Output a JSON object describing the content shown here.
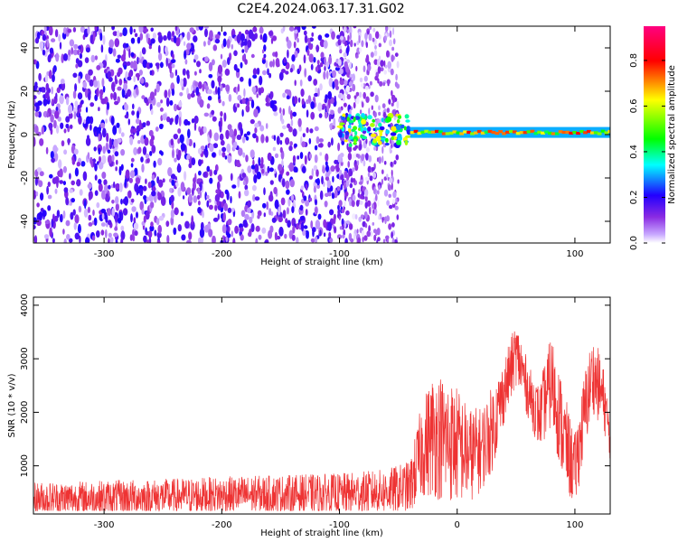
{
  "title": "C2E4.2024.063.17.31.G02",
  "colors": {
    "snr_line": "#ee3333",
    "colorbar_stops": [
      "#ffffff",
      "#c8a8ff",
      "#8a2be2",
      "#2200ff",
      "#00ffff",
      "#00ff00",
      "#ffff00",
      "#ff0000",
      "#ff0080"
    ]
  },
  "chart_data": [
    {
      "type": "heatmap",
      "xlabel": "Height of straight line (km)",
      "ylabel": "Frequency (Hz)",
      "xlim": [
        -360,
        130
      ],
      "ylim": [
        -50,
        50
      ],
      "xticks": [
        -300,
        -200,
        -100,
        0,
        100
      ],
      "xtick_labels": [
        "-300",
        "-200",
        "-100",
        "0",
        "100"
      ],
      "yticks": [
        -40,
        -20,
        0,
        20,
        40
      ],
      "ytick_labels": [
        "-40",
        "-20",
        "0",
        "20",
        "40"
      ],
      "colorbar": {
        "label": "Normalized spectral amplitude",
        "range": [
          0,
          0.95
        ],
        "ticks": [
          0,
          0.2,
          0.4,
          0.6,
          0.8
        ],
        "tick_labels": [
          "0.0",
          "0.2",
          "0.4",
          "0.6",
          "0.8"
        ]
      },
      "features": [
        {
          "x_range": [
            -360,
            -100
          ],
          "y_range": [
            -50,
            50
          ],
          "amplitude": 0.15,
          "pattern": "broadband noise"
        },
        {
          "x_range": [
            -100,
            -50
          ],
          "y_range": [
            -20,
            20
          ],
          "amplitude": 0.25,
          "pattern": "fading noise"
        },
        {
          "x_range": [
            -100,
            -40
          ],
          "center_y": 2,
          "amplitude": 0.5,
          "pattern": "emerging carrier"
        },
        {
          "x_range": [
            -40,
            130
          ],
          "center_y": 1,
          "width_hz": 2.5,
          "amplitude": 0.75,
          "pattern": "steady carrier"
        }
      ]
    },
    {
      "type": "line",
      "xlabel": "Height of straight line (km)",
      "ylabel": "SNR (10 * v/v)",
      "xlim": [
        -360,
        130
      ],
      "ylim": [
        100,
        4150
      ],
      "xticks": [
        -300,
        -200,
        -100,
        0,
        100
      ],
      "xtick_labels": [
        "-300",
        "-200",
        "-100",
        "0",
        "100"
      ],
      "yticks": [
        1000,
        2000,
        3000,
        4000
      ],
      "ytick_labels": [
        "1000",
        "2000",
        "3000",
        "4000"
      ],
      "series": [
        {
          "x": [
            -360,
            -300,
            -250,
            -200,
            -150,
            -100,
            -60,
            -40,
            -30,
            -20,
            -10,
            0,
            10,
            20,
            30,
            40,
            50,
            55,
            60,
            70,
            80,
            90,
            95,
            100,
            110,
            115,
            120,
            125,
            130
          ],
          "mean": [
            380,
            400,
            420,
            450,
            470,
            480,
            520,
            600,
            1300,
            1600,
            1500,
            1400,
            1200,
            1300,
            1700,
            2400,
            3100,
            2800,
            2400,
            1900,
            2600,
            1600,
            1200,
            900,
            2200,
            2700,
            2500,
            2200,
            1500
          ],
          "spread": [
            320,
            330,
            340,
            350,
            360,
            380,
            420,
            500,
            900,
            1200,
            1200,
            1100,
            900,
            800,
            800,
            600,
            600,
            600,
            500,
            600,
            900,
            900,
            800,
            700,
            800,
            700,
            700,
            600,
            400
          ]
        }
      ]
    }
  ]
}
